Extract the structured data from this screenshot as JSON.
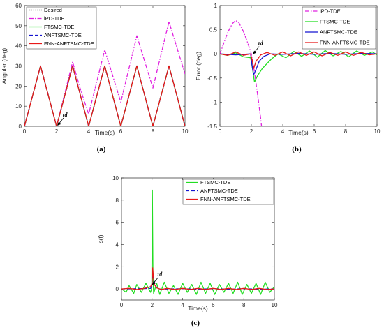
{
  "chart_data": [
    {
      "id": "a",
      "type": "line",
      "caption": "(a)",
      "xlabel": "Time(s)",
      "ylabel": "Angular (deg)",
      "xlim": [
        0,
        10
      ],
      "ylim": [
        0,
        60
      ],
      "xticks": [
        0,
        2,
        4,
        6,
        8,
        10
      ],
      "yticks": [
        0,
        10,
        20,
        30,
        40,
        50,
        60
      ],
      "grid": false,
      "legend_position": "top-left",
      "annotation": {
        "text": "τd",
        "at": [
          2,
          0
        ]
      },
      "series": [
        {
          "name": "Desired",
          "color": "#000000",
          "style": "dotted",
          "description": "15*(1 - cos(2*pi*t/2))",
          "x": [
            0,
            0.5,
            1,
            1.5,
            2,
            2.5,
            3,
            3.5,
            4,
            4.5,
            5,
            5.5,
            6,
            6.5,
            7,
            7.5,
            8,
            8.5,
            9,
            9.5,
            10
          ],
          "y": [
            0,
            15,
            30,
            15,
            0,
            15,
            30,
            15,
            0,
            15,
            30,
            15,
            0,
            15,
            30,
            15,
            0,
            15,
            30,
            15,
            0
          ]
        },
        {
          "name": "iPD-TDE",
          "color": "#e020e0",
          "style": "dashdot",
          "x": [
            0,
            1,
            2,
            2.5,
            3,
            3.5,
            4,
            5,
            6,
            7,
            8,
            9,
            10
          ],
          "y": [
            0,
            30,
            0,
            16,
            32,
            18,
            6,
            38,
            12,
            45,
            19,
            52,
            26
          ]
        },
        {
          "name": "FTSMC-TDE",
          "color": "#22dd22",
          "style": "solid",
          "x": [
            0,
            0.5,
            1,
            1.5,
            2,
            2.5,
            3,
            3.5,
            4,
            4.5,
            5,
            5.5,
            6,
            6.5,
            7,
            7.5,
            8,
            8.5,
            9,
            9.5,
            10
          ],
          "y": [
            0,
            15,
            30,
            15,
            0,
            15,
            30,
            15,
            0,
            15,
            30,
            15,
            0,
            15,
            30,
            15,
            0,
            15,
            30,
            15,
            0
          ]
        },
        {
          "name": "ANFTSMC-TDE",
          "color": "#1515d0",
          "style": "dashed",
          "x": [
            0,
            0.5,
            1,
            1.5,
            2,
            2.5,
            3,
            3.5,
            4,
            4.5,
            5,
            5.5,
            6,
            6.5,
            7,
            7.5,
            8,
            8.5,
            9,
            9.5,
            10
          ],
          "y": [
            0,
            15,
            30,
            15,
            0,
            15,
            30,
            15,
            0,
            15,
            30,
            15,
            0,
            15,
            30,
            15,
            0,
            15,
            30,
            15,
            0
          ]
        },
        {
          "name": "FNN-ANFTSMC-TDE",
          "color": "#e81818",
          "style": "solid",
          "x": [
            0,
            0.5,
            1,
            1.5,
            2,
            2.5,
            3,
            3.5,
            4,
            4.5,
            5,
            5.5,
            6,
            6.5,
            7,
            7.5,
            8,
            8.5,
            9,
            9.5,
            10
          ],
          "y": [
            0,
            15,
            30,
            15,
            0,
            15,
            30,
            15,
            0,
            15,
            30,
            15,
            0,
            15,
            30,
            15,
            0,
            15,
            30,
            15,
            0
          ]
        }
      ]
    },
    {
      "id": "b",
      "type": "line",
      "caption": "(b)",
      "xlabel": "Time(s)",
      "ylabel": "Error (deg)",
      "xlim": [
        0,
        10
      ],
      "ylim": [
        -1.5,
        1
      ],
      "xticks": [
        0,
        2,
        4,
        6,
        8,
        10
      ],
      "yticks": [
        -1.5,
        -1,
        -0.5,
        0,
        0.5,
        1
      ],
      "grid": false,
      "legend_position": "top-right",
      "annotation": {
        "text": "τd",
        "at": [
          2.05,
          -0.02
        ]
      },
      "series": [
        {
          "name": "iPD-TDE",
          "color": "#e020e0",
          "style": "dashdot",
          "x": [
            0,
            0.2,
            0.5,
            0.8,
            1.0,
            1.2,
            1.5,
            1.8,
            2.0,
            2.2,
            2.4,
            2.6,
            2.65
          ],
          "y": [
            0.0,
            0.18,
            0.45,
            0.63,
            0.69,
            0.65,
            0.46,
            0.2,
            0.0,
            -0.38,
            -0.85,
            -1.35,
            -1.5
          ]
        },
        {
          "name": "FTSMC-TDE",
          "color": "#22dd22",
          "style": "solid",
          "x": [
            0,
            0.5,
            1.0,
            1.5,
            1.95,
            2.05,
            2.2,
            2.4,
            2.7,
            3.0,
            3.3,
            3.7,
            4.2,
            4.7,
            5.2,
            5.7,
            6.2,
            6.7,
            7.2,
            7.7,
            8.2,
            8.7,
            9.2,
            9.7,
            10
          ],
          "y": [
            0.0,
            -0.03,
            0.02,
            -0.06,
            -0.08,
            -0.25,
            -0.58,
            -0.45,
            -0.3,
            -0.2,
            -0.1,
            0.0,
            -0.08,
            0.05,
            -0.05,
            0.06,
            -0.07,
            0.07,
            -0.04,
            0.05,
            -0.06,
            0.06,
            -0.03,
            0.04,
            -0.02
          ]
        },
        {
          "name": "ANFTSMC-TDE",
          "color": "#1515d0",
          "style": "solid",
          "x": [
            0,
            1.0,
            1.95,
            2.05,
            2.15,
            2.3,
            2.5,
            2.8,
            3.2,
            4,
            5,
            6,
            7,
            8,
            9,
            10
          ],
          "y": [
            0.0,
            -0.02,
            0.0,
            -0.25,
            -0.43,
            -0.32,
            -0.15,
            -0.05,
            0.0,
            -0.01,
            0.01,
            -0.01,
            0.01,
            -0.01,
            0.01,
            0.0
          ]
        },
        {
          "name": "FNN-ANFTSMC-TDE",
          "color": "#e81818",
          "style": "solid",
          "x": [
            0,
            0.5,
            1.0,
            1.5,
            1.95,
            2.05,
            2.15,
            2.3,
            2.6,
            3.0,
            3.5,
            4.0,
            4.5,
            5.0,
            5.5,
            6.0,
            6.5,
            7.0,
            7.5,
            8.0,
            8.5,
            9.0,
            9.5,
            10
          ],
          "y": [
            0.0,
            -0.03,
            0.04,
            -0.03,
            0.0,
            -0.12,
            -0.3,
            -0.15,
            -0.02,
            0.03,
            -0.03,
            0.04,
            -0.04,
            0.04,
            -0.03,
            0.04,
            -0.04,
            0.03,
            -0.03,
            0.04,
            -0.03,
            0.03,
            -0.02,
            0.0
          ]
        }
      ]
    },
    {
      "id": "c",
      "type": "line",
      "caption": "(c)",
      "xlabel": "Time(s)",
      "ylabel": "s(t)",
      "xlim": [
        0,
        10
      ],
      "ylim": [
        -1,
        10
      ],
      "xticks": [
        0,
        2,
        4,
        6,
        8,
        10
      ],
      "yticks": [
        0,
        2,
        4,
        6,
        8,
        10
      ],
      "grid": false,
      "legend_position": "top-right",
      "annotation": {
        "text": "τd",
        "at": [
          1.95,
          0.3
        ]
      },
      "series": [
        {
          "name": "FTSMC-TDE",
          "color": "#22dd22",
          "style": "solid",
          "x": [
            0,
            0.3,
            0.5,
            0.8,
            1.0,
            1.3,
            1.6,
            1.9,
            1.98,
            2.02,
            2.06,
            2.1,
            2.3,
            2.5,
            2.8,
            3.1,
            3.4,
            3.7,
            4.0,
            4.3,
            4.6,
            4.9,
            5.2,
            5.5,
            5.8,
            6.1,
            6.4,
            6.7,
            7.0,
            7.3,
            7.6,
            7.9,
            8.2,
            8.5,
            8.8,
            9.1,
            9.4,
            9.7,
            10
          ],
          "y": [
            0,
            -0.3,
            0.3,
            -0.4,
            0.4,
            -0.3,
            0.5,
            -0.3,
            0.1,
            8.9,
            1.0,
            -0.4,
            0.5,
            -0.5,
            0.6,
            -0.4,
            0.3,
            -0.5,
            0.5,
            -0.3,
            0.4,
            -0.5,
            0.6,
            -0.4,
            0.5,
            -0.5,
            0.4,
            -0.3,
            0.5,
            -0.4,
            0.6,
            -0.5,
            0.4,
            -0.4,
            0.5,
            -0.5,
            0.6,
            -0.3,
            0.2
          ]
        },
        {
          "name": "ANFTSMC-TDE",
          "color": "#1515d0",
          "style": "dashed",
          "x": [
            0,
            1.0,
            1.9,
            2.0,
            2.04,
            2.1,
            2.3,
            2.6,
            3.0,
            4,
            5,
            6,
            7,
            8,
            9,
            10
          ],
          "y": [
            0,
            0.02,
            0.05,
            0.3,
            1.6,
            0.8,
            0.1,
            -0.05,
            0.0,
            0.02,
            -0.02,
            0.02,
            -0.02,
            0.02,
            -0.02,
            0.0
          ]
        },
        {
          "name": "FNN-ANFTSMC-TDE",
          "color": "#e81818",
          "style": "solid",
          "x": [
            0,
            0.5,
            1.0,
            1.5,
            1.9,
            2.0,
            2.04,
            2.08,
            2.15,
            2.3,
            2.6,
            3.0,
            3.5,
            4.0,
            4.5,
            5.0,
            5.5,
            6.0,
            6.5,
            7.0,
            7.5,
            8.0,
            8.5,
            9.0,
            9.5,
            10
          ],
          "y": [
            0,
            0.05,
            -0.05,
            0.05,
            0.2,
            0.5,
            1.9,
            1.1,
            0.4,
            0.1,
            -0.05,
            0.05,
            -0.05,
            0.05,
            -0.05,
            0.05,
            -0.05,
            0.05,
            -0.05,
            0.05,
            -0.05,
            0.05,
            -0.05,
            0.05,
            -0.05,
            0.0
          ]
        }
      ]
    }
  ]
}
